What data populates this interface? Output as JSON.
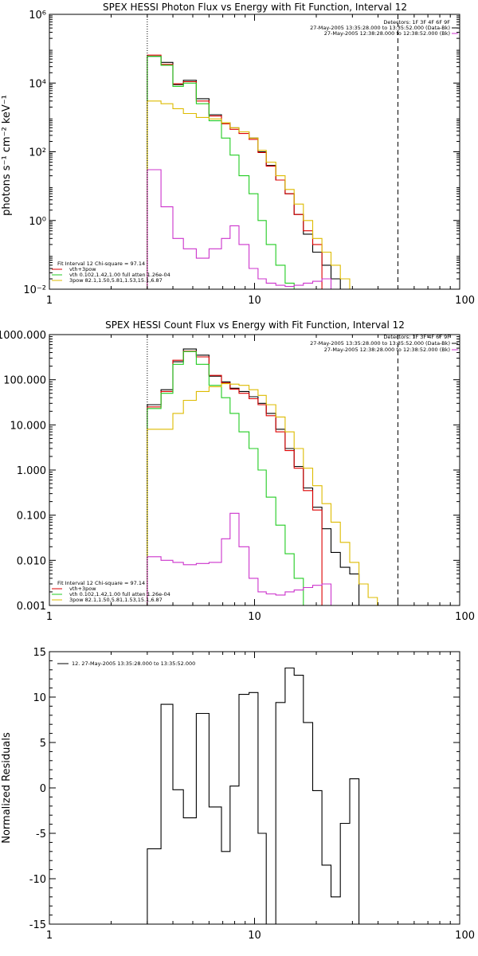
{
  "chart_data": [
    {
      "type": "line",
      "title": "SPEX HESSI Photon Flux vs Energy with Fit Function, Interval 12",
      "ylabel": "photons s⁻¹ cm⁻² keV⁻¹",
      "xscale": "log",
      "yscale": "log",
      "xlim": [
        1,
        100
      ],
      "ylim": [
        0.01,
        1000000
      ],
      "x_ticks": [
        {
          "v": 1,
          "label": "1"
        },
        {
          "v": 10,
          "label": "10"
        },
        {
          "v": 100,
          "label": "100"
        }
      ],
      "y_ticks": [
        {
          "v": 0.01,
          "label": "10⁻²"
        },
        {
          "v": 1,
          "label": "10⁰"
        },
        {
          "v": 100,
          "label": "10²"
        },
        {
          "v": 10000,
          "label": "10⁴"
        },
        {
          "v": 1000000,
          "label": "10⁶"
        }
      ],
      "vlines": [
        {
          "x": 3,
          "style": "dotted"
        },
        {
          "x": 50,
          "style": "dashed"
        }
      ],
      "legend_top": [
        "Detectors: 1F 3F 4F 6F 9F",
        "27-May-2005 13:35:28.000 to 13:35:52.000 (Data-Bk)",
        "27-May-2005 12:38:28.000 to 12:38:52.000 (Bk)"
      ],
      "legend_top_colors": [
        "",
        "#000000",
        "#cc33cc"
      ],
      "legend_bottom": [
        "Fit Interval 12   Chi-square = 97.14",
        "vth+3pow",
        "vth 0.102,1.42,1.00  full atten 1.26e-04",
        "3pow 82.1,1.50,5.81,1.53,15.1,6.87"
      ],
      "legend_bottom_colors": [
        "",
        "#dd0000",
        "#22cc22",
        "#ddbb00"
      ],
      "series": [
        {
          "color": "#000000",
          "values": [
            60000,
            40000,
            9000,
            12000,
            3500,
            1200,
            700,
            500,
            380,
            250,
            100,
            40,
            15,
            6,
            1.5,
            0.4,
            0.12,
            0.05,
            0.02
          ]
        },
        {
          "color": "#dd0000",
          "values": [
            65000,
            35000,
            9500,
            11000,
            3000,
            1100,
            650,
            450,
            340,
            230,
            95,
            38,
            15,
            6,
            1.5,
            0.5,
            0.2
          ]
        },
        {
          "color": "#22cc22",
          "values": [
            60000,
            33000,
            8000,
            10000,
            2500,
            800,
            250,
            80,
            20,
            6,
            1,
            0.2,
            0.05,
            0.015,
            0.008
          ]
        },
        {
          "color": "#ddbb00",
          "values": [
            3000,
            2500,
            1800,
            1300,
            1000,
            900,
            700,
            500,
            380,
            250,
            110,
            50,
            20,
            8,
            3,
            1,
            0.3,
            0.12,
            0.05,
            0.02,
            0.01
          ]
        },
        {
          "color": "#cc33cc",
          "values": [
            30,
            2.5,
            0.3,
            0.15,
            0.08,
            0.15,
            0.3,
            0.7,
            0.2,
            0.04,
            0.02,
            0.015,
            0.013,
            0.012,
            0.013,
            0.015,
            0.017,
            0.02
          ]
        }
      ]
    },
    {
      "type": "line",
      "title": "SPEX HESSI Count Flux vs Energy with Fit Function, Interval 12",
      "yscale": "log",
      "xscale": "log",
      "xlim": [
        1,
        100
      ],
      "ylim": [
        0.001,
        1000
      ],
      "x_ticks": [
        {
          "v": 1,
          "label": "1"
        },
        {
          "v": 10,
          "label": "10"
        },
        {
          "v": 100,
          "label": "100"
        }
      ],
      "y_ticks": [
        {
          "v": 0.001,
          "label": "0.001"
        },
        {
          "v": 0.01,
          "label": "0.010"
        },
        {
          "v": 0.1,
          "label": "0.100"
        },
        {
          "v": 1,
          "label": "1.000"
        },
        {
          "v": 10,
          "label": "10.000"
        },
        {
          "v": 100,
          "label": "100.000"
        },
        {
          "v": 1000,
          "label": "1000.000"
        }
      ],
      "vlines": [
        {
          "x": 3,
          "style": "dotted"
        },
        {
          "x": 50,
          "style": "dashed"
        }
      ],
      "legend_top": [
        "Detectors: 1F 3F 4F 6F 9F",
        "27-May-2005 13:35:28.000 to 13:35:52.000 (Data-Bk)",
        "27-May-2005 12:38:28.000 to 12:38:52.000 (Bk)"
      ],
      "legend_top_colors": [
        "",
        "#000000",
        "#cc33cc"
      ],
      "legend_bottom": [
        "Fit Interval 12   Chi-square = 97.14",
        "vth+3pow",
        "vth 0.102,1.42,1.00  full atten 1.26e-04",
        "3pow 82.1,1.50,5.81,1.53,15.1,6.87"
      ],
      "legend_bottom_colors": [
        "",
        "#dd0000",
        "#22cc22",
        "#ddbb00"
      ],
      "series": [
        {
          "color": "#000000",
          "values": [
            28,
            60,
            250,
            480,
            350,
            120,
            90,
            65,
            55,
            42,
            30,
            18,
            8,
            3,
            1.2,
            0.4,
            0.15,
            0.05,
            0.015,
            0.007,
            0.005
          ]
        },
        {
          "color": "#dd0000",
          "values": [
            25,
            55,
            270,
            430,
            320,
            125,
            85,
            62,
            50,
            38,
            28,
            16,
            7,
            2.7,
            1.1,
            0.35,
            0.13
          ]
        },
        {
          "color": "#22cc22",
          "values": [
            23,
            50,
            220,
            420,
            220,
            75,
            40,
            18,
            7,
            3,
            1,
            0.25,
            0.06,
            0.014,
            0.004,
            0.001
          ]
        },
        {
          "color": "#ddbb00",
          "values": [
            8,
            8,
            18,
            35,
            55,
            70,
            82,
            80,
            75,
            60,
            45,
            28,
            15,
            7,
            3,
            1.1,
            0.45,
            0.18,
            0.07,
            0.025,
            0.009,
            0.003,
            0.0015,
            0.0007
          ]
        },
        {
          "color": "#cc33cc",
          "values": [
            0.012,
            0.01,
            0.009,
            0.008,
            0.0085,
            0.009,
            0.03,
            0.11,
            0.02,
            0.004,
            0.002,
            0.0018,
            0.0017,
            0.002,
            0.0022,
            0.0025,
            0.0028,
            0.003
          ]
        }
      ]
    },
    {
      "type": "line",
      "title": "",
      "ylabel": "Normalized Residuals",
      "xscale": "log",
      "yscale": "linear",
      "xlim": [
        1,
        100
      ],
      "ylim": [
        -15,
        15
      ],
      "x_ticks": [
        {
          "v": 1,
          "label": "1"
        },
        {
          "v": 10,
          "label": "10"
        },
        {
          "v": 100,
          "label": "100"
        }
      ],
      "y_ticks": [
        {
          "v": -15,
          "label": "-15"
        },
        {
          "v": -10,
          "label": "-10"
        },
        {
          "v": -5,
          "label": "-5"
        },
        {
          "v": 0,
          "label": "0"
        },
        {
          "v": 5,
          "label": "5"
        },
        {
          "v": 10,
          "label": "10"
        },
        {
          "v": 15,
          "label": "15"
        }
      ],
      "legend": [
        "12. 27-May-2005 13:35:28.000 to 13:35:52.000"
      ],
      "series": [
        {
          "color": "#000000",
          "values": [
            -6.7,
            9.2,
            -0.2,
            -3.3,
            8.2,
            -2.1,
            -7.0,
            0.2,
            10.3,
            10.5,
            -5.0,
            -15.0,
            9.4,
            13.2,
            12.4,
            7.2,
            -0.3,
            -8.5,
            -12.0,
            -3.9,
            1.0
          ]
        }
      ]
    }
  ],
  "energy_bins": [
    3,
    3.5,
    4,
    4.5,
    5.2,
    6,
    6.9,
    7.6,
    8.4,
    9.4,
    10.4,
    11.4,
    12.7,
    14.1,
    15.6,
    17.3,
    19.2,
    21.3,
    23.6,
    26.2,
    29.1,
    32.3,
    35.8,
    39.7,
    44.1,
    48.9,
    54.3,
    60.2
  ]
}
